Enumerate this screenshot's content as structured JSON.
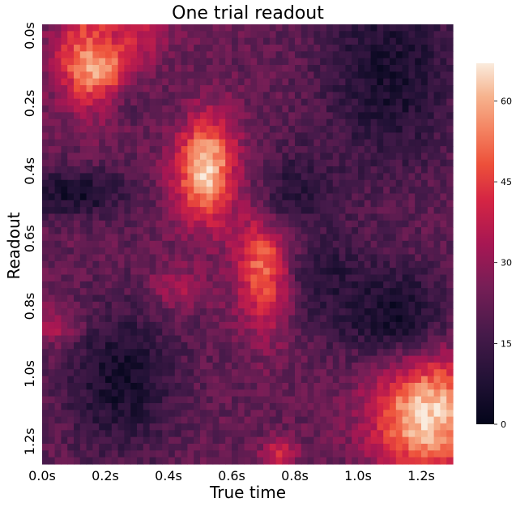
{
  "chart_data": {
    "type": "heatmap",
    "title": "One trial readout",
    "xlabel": "True time",
    "ylabel": "Readout",
    "x_ticks": [
      "0.0s",
      "0.2s",
      "0.4s",
      "0.6s",
      "0.8s",
      "1.0s",
      "1.2s"
    ],
    "y_ticks": [
      "0.0s",
      "0.2s",
      "0.4s",
      "0.6s",
      "0.8s",
      "1.0s",
      "1.2s"
    ],
    "x_range_s": [
      0.0,
      1.3
    ],
    "y_range_s": [
      0.0,
      1.3
    ],
    "colorbar": {
      "ticks": [
        "60",
        "45",
        "30",
        "15",
        "0"
      ],
      "range": [
        0,
        67
      ],
      "colormap": "rocket"
    },
    "features": [
      {
        "cx": 0.17,
        "cy": 0.1,
        "sx": 0.08,
        "sy": 0.1,
        "v": 65
      },
      {
        "cx": 0.25,
        "cy": 0.03,
        "sx": 0.1,
        "sy": 0.05,
        "v": 40
      },
      {
        "cx": 0.52,
        "cy": 0.43,
        "sx": 0.07,
        "sy": 0.11,
        "v": 65
      },
      {
        "cx": 0.72,
        "cy": 0.7,
        "sx": 0.07,
        "sy": 0.13,
        "v": 62
      },
      {
        "cx": 1.22,
        "cy": 1.15,
        "sx": 0.12,
        "sy": 0.13,
        "v": 66
      },
      {
        "cx": 0.05,
        "cy": 0.89,
        "sx": 0.06,
        "sy": 0.04,
        "v": 38
      },
      {
        "cx": 0.42,
        "cy": 0.78,
        "sx": 0.06,
        "sy": 0.05,
        "v": 35
      },
      {
        "cx": 0.75,
        "cy": 1.27,
        "sx": 0.04,
        "sy": 0.03,
        "v": 40
      },
      {
        "cx": 0.32,
        "cy": 0.25,
        "sx": 0.08,
        "sy": 0.05,
        "v": 20
      },
      {
        "cx": 0.8,
        "cy": 0.5,
        "sx": 0.1,
        "sy": 0.1,
        "v": 10
      },
      {
        "cx": 0.1,
        "cy": 0.5,
        "sx": 0.12,
        "sy": 0.05,
        "v": 5
      },
      {
        "cx": 0.25,
        "cy": 1.05,
        "sx": 0.12,
        "sy": 0.15,
        "v": 5
      },
      {
        "cx": 1.1,
        "cy": 0.85,
        "sx": 0.14,
        "sy": 0.1,
        "v": 5
      },
      {
        "cx": 1.1,
        "cy": 0.15,
        "sx": 0.15,
        "sy": 0.2,
        "v": 6
      },
      {
        "cx": 0.9,
        "cy": 0.75,
        "sx": 0.1,
        "sy": 0.1,
        "v": 10
      }
    ],
    "baseline": 22
  }
}
